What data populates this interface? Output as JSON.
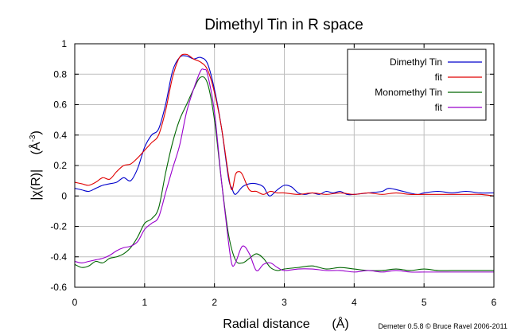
{
  "chart_data": {
    "type": "line",
    "title": "Dimethyl Tin in R space",
    "xlabel": "Radial distance",
    "xlabel_unit": "(Å)",
    "ylabel": "|χ(R)|",
    "ylabel_unit_base": "(Å",
    "ylabel_unit_exp": "-3",
    "ylabel_unit_close": ")",
    "credit": "Demeter 0.5.8 © Bruce Ravel 2006-2011",
    "xlim": [
      0,
      6
    ],
    "ylim": [
      -0.6,
      1.0
    ],
    "x_ticks": [
      "0",
      "1",
      "2",
      "3",
      "4",
      "5",
      "6"
    ],
    "y_ticks": [
      "-0.6",
      "-0.4",
      "-0.2",
      "0",
      "0.2",
      "0.4",
      "0.6",
      "0.8",
      "1"
    ],
    "x_tick_values": [
      0,
      1,
      2,
      3,
      4,
      5,
      6
    ],
    "y_tick_values": [
      -0.6,
      -0.4,
      -0.2,
      0,
      0.2,
      0.4,
      0.6,
      0.8,
      1.0
    ],
    "grid": true,
    "legend_position": "top-right",
    "series": [
      {
        "name": "Dimethyl Tin",
        "color": "#0000cc",
        "x": [
          0,
          0.1,
          0.2,
          0.3,
          0.4,
          0.5,
          0.6,
          0.7,
          0.8,
          0.9,
          1.0,
          1.1,
          1.2,
          1.3,
          1.4,
          1.5,
          1.6,
          1.7,
          1.8,
          1.9,
          2.0,
          2.1,
          2.2,
          2.25,
          2.3,
          2.4,
          2.5,
          2.6,
          2.7,
          2.75,
          2.8,
          2.9,
          3.0,
          3.1,
          3.2,
          3.3,
          3.4,
          3.5,
          3.6,
          3.7,
          3.8,
          3.9,
          4.0,
          4.2,
          4.4,
          4.5,
          4.7,
          4.9,
          5.0,
          5.2,
          5.4,
          5.6,
          5.8,
          6.0
        ],
        "y": [
          0.05,
          0.04,
          0.03,
          0.05,
          0.07,
          0.08,
          0.09,
          0.12,
          0.1,
          0.18,
          0.32,
          0.4,
          0.44,
          0.6,
          0.82,
          0.91,
          0.92,
          0.9,
          0.91,
          0.87,
          0.7,
          0.45,
          0.12,
          0.05,
          0.01,
          0.06,
          0.08,
          0.08,
          0.06,
          0.02,
          0.0,
          0.04,
          0.07,
          0.06,
          0.02,
          0.01,
          0.02,
          0.01,
          0.03,
          0.02,
          0.03,
          0.01,
          0.01,
          0.02,
          0.03,
          0.05,
          0.03,
          0.01,
          0.02,
          0.03,
          0.02,
          0.03,
          0.02,
          0.02
        ]
      },
      {
        "name": "fit",
        "color": "#e00000",
        "x": [
          0,
          0.1,
          0.2,
          0.3,
          0.4,
          0.5,
          0.6,
          0.7,
          0.8,
          0.9,
          1.0,
          1.1,
          1.2,
          1.3,
          1.4,
          1.5,
          1.6,
          1.7,
          1.8,
          1.9,
          2.0,
          2.1,
          2.2,
          2.25,
          2.3,
          2.35,
          2.4,
          2.5,
          2.6,
          2.7,
          2.8,
          2.9,
          3.0,
          3.2,
          3.4,
          3.6,
          3.8,
          4.0,
          4.2,
          4.4,
          4.6,
          4.8,
          5.0,
          5.2,
          5.4,
          5.6,
          5.8,
          6.0
        ],
        "y": [
          0.09,
          0.08,
          0.07,
          0.09,
          0.12,
          0.11,
          0.16,
          0.2,
          0.21,
          0.25,
          0.3,
          0.35,
          0.4,
          0.56,
          0.78,
          0.91,
          0.93,
          0.9,
          0.88,
          0.83,
          0.68,
          0.45,
          0.14,
          0.04,
          0.14,
          0.16,
          0.14,
          0.04,
          0.03,
          0.01,
          0.03,
          0.02,
          0.02,
          0.01,
          0.02,
          0.01,
          0.02,
          0.01,
          0.02,
          0.01,
          0.02,
          0.01,
          0.01,
          0.01,
          0.01,
          0.01,
          0.01,
          0.0
        ]
      },
      {
        "name": "Monomethyl Tin",
        "color": "#006600",
        "x": [
          0,
          0.1,
          0.2,
          0.3,
          0.4,
          0.5,
          0.6,
          0.7,
          0.8,
          0.9,
          1.0,
          1.1,
          1.2,
          1.3,
          1.4,
          1.5,
          1.6,
          1.7,
          1.8,
          1.9,
          2.0,
          2.1,
          2.2,
          2.3,
          2.4,
          2.5,
          2.6,
          2.7,
          2.8,
          2.9,
          3.0,
          3.2,
          3.4,
          3.6,
          3.8,
          4.0,
          4.2,
          4.4,
          4.6,
          4.8,
          5.0,
          5.2,
          5.4,
          5.6,
          5.8,
          6.0
        ],
        "y": [
          -0.45,
          -0.47,
          -0.46,
          -0.43,
          -0.44,
          -0.41,
          -0.4,
          -0.38,
          -0.34,
          -0.27,
          -0.18,
          -0.15,
          -0.08,
          0.15,
          0.35,
          0.5,
          0.6,
          0.7,
          0.78,
          0.74,
          0.5,
          0.1,
          -0.25,
          -0.42,
          -0.44,
          -0.41,
          -0.38,
          -0.41,
          -0.47,
          -0.49,
          -0.48,
          -0.47,
          -0.46,
          -0.48,
          -0.47,
          -0.48,
          -0.49,
          -0.49,
          -0.48,
          -0.49,
          -0.48,
          -0.49,
          -0.49,
          -0.49,
          -0.49,
          -0.49
        ]
      },
      {
        "name": "fit",
        "color": "#9900cc",
        "x": [
          0,
          0.1,
          0.2,
          0.3,
          0.4,
          0.5,
          0.6,
          0.7,
          0.8,
          0.9,
          1.0,
          1.1,
          1.2,
          1.3,
          1.4,
          1.5,
          1.6,
          1.7,
          1.8,
          1.85,
          1.9,
          2.0,
          2.1,
          2.2,
          2.25,
          2.3,
          2.4,
          2.5,
          2.6,
          2.7,
          2.8,
          2.9,
          3.0,
          3.2,
          3.4,
          3.6,
          3.8,
          4.0,
          4.2,
          4.4,
          4.6,
          4.8,
          5.0,
          5.2,
          5.4,
          5.6,
          5.8,
          6.0
        ],
        "y": [
          -0.43,
          -0.44,
          -0.43,
          -0.42,
          -0.41,
          -0.39,
          -0.36,
          -0.34,
          -0.33,
          -0.3,
          -0.22,
          -0.18,
          -0.14,
          0.02,
          0.18,
          0.33,
          0.55,
          0.7,
          0.82,
          0.83,
          0.8,
          0.55,
          0.1,
          -0.3,
          -0.45,
          -0.44,
          -0.33,
          -0.38,
          -0.49,
          -0.45,
          -0.44,
          -0.47,
          -0.49,
          -0.48,
          -0.48,
          -0.49,
          -0.49,
          -0.5,
          -0.49,
          -0.5,
          -0.49,
          -0.5,
          -0.5,
          -0.5,
          -0.5,
          -0.5,
          -0.5,
          -0.5
        ]
      }
    ]
  }
}
